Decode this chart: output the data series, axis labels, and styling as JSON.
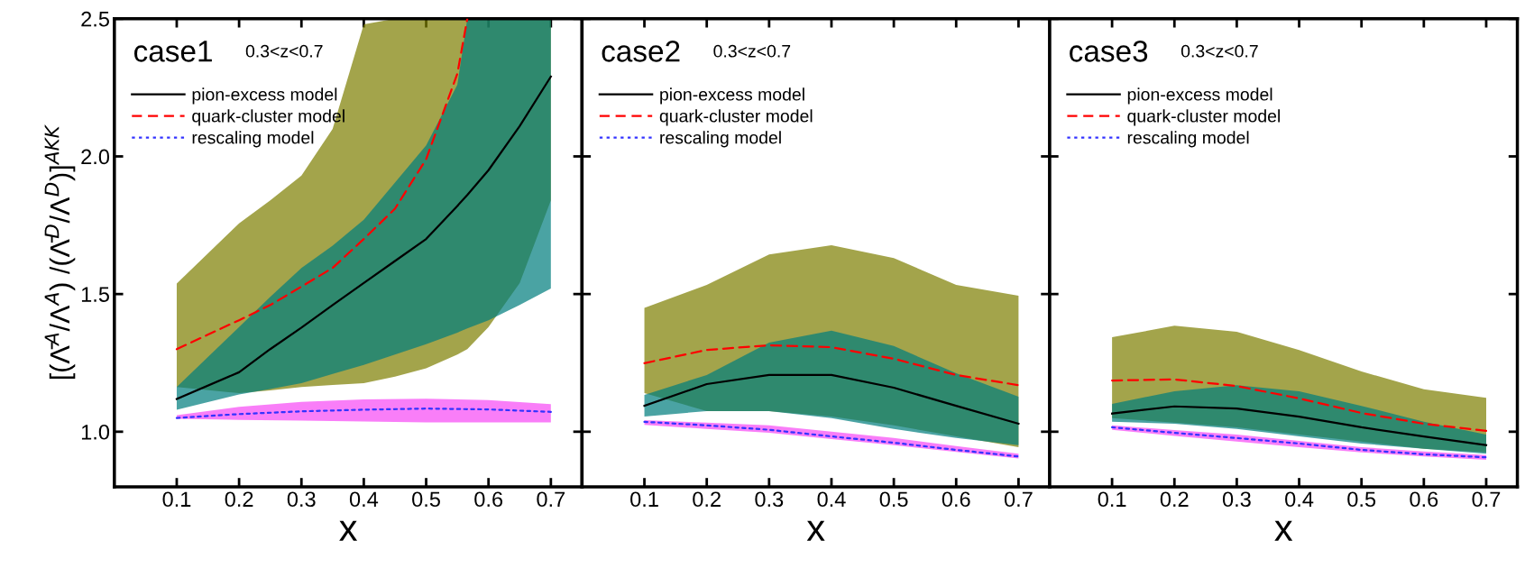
{
  "chart_data": [
    {
      "type": "line",
      "title": "case1",
      "subtitle": "0.3<z<0.7",
      "xlabel": "x",
      "ylabel": "[(Λ̄$^{A}$/Λ$^{A}$) /(Λ̄$^{D}$/Λ$^{D}$)]$^{AKK}$",
      "xlim": [
        0,
        0.75
      ],
      "ylim": [
        0.8,
        2.5
      ],
      "xticks": [
        0.1,
        0.2,
        0.3,
        0.4,
        0.5,
        0.6,
        0.7
      ],
      "yticks": [
        {
          "value": 1,
          "label": "1.0"
        },
        1.5,
        {
          "value": 2,
          "label": "2.0"
        },
        2.5
      ],
      "legend": "top left",
      "grid": false,
      "series": [
        {
          "name": "pion-excess model",
          "color": "#000000",
          "line_style": "solid",
          "x": [
            0.1,
            0.2,
            0.25,
            0.3,
            0.35,
            0.4,
            0.45,
            0.5,
            0.55,
            0.566,
            0.6,
            0.65,
            0.7
          ],
          "values": [
            1.119,
            1.216,
            1.3,
            1.378,
            1.46,
            1.54,
            1.62,
            1.7,
            1.82,
            1.86,
            1.95,
            2.11,
            2.29
          ],
          "upper": [
            1.162,
            1.38,
            1.49,
            1.595,
            1.676,
            1.77,
            1.905,
            2.04,
            2.26,
            2.5,
            2.5,
            2.5,
            2.5
          ],
          "lower": [
            1.08,
            1.135,
            1.155,
            1.176,
            1.21,
            1.243,
            1.28,
            1.318,
            1.36,
            1.375,
            1.405,
            1.46,
            1.52
          ]
        },
        {
          "name": "quark-cluster model",
          "color": "#ff0000",
          "line_style": "dashed",
          "x": [
            0.1,
            0.2,
            0.25,
            0.3,
            0.35,
            0.4,
            0.45,
            0.5,
            0.55,
            0.566,
            0.6,
            0.65,
            0.7
          ],
          "values": [
            1.3,
            1.405,
            1.46,
            1.527,
            1.595,
            1.7,
            1.81,
            1.99,
            2.3,
            2.5,
            null,
            null,
            null
          ],
          "upper": [
            1.538,
            1.757,
            1.84,
            1.93,
            2.1,
            2.48,
            2.5,
            2.5,
            2.5,
            2.5,
            2.5,
            2.5,
            2.5
          ],
          "lower": [
            1.162,
            1.14,
            1.15,
            1.162,
            1.17,
            1.176,
            1.2,
            1.23,
            1.28,
            1.3,
            1.38,
            1.54,
            1.84
          ]
        },
        {
          "name": "rescaling model",
          "color": "#3333ff",
          "line_style": "dotted",
          "x": [
            0.1,
            0.2,
            0.3,
            0.4,
            0.5,
            0.6,
            0.7
          ],
          "values": [
            1.05,
            1.064,
            1.074,
            1.08,
            1.084,
            1.081,
            1.072
          ],
          "upper": [
            1.06,
            1.09,
            1.108,
            1.117,
            1.12,
            1.115,
            1.1
          ],
          "lower": [
            1.047,
            1.043,
            1.04,
            1.037,
            1.034,
            1.034,
            1.034
          ]
        }
      ]
    },
    {
      "type": "line",
      "title": "case2",
      "subtitle": "0.3<z<0.7",
      "xlabel": "x",
      "xlim": [
        0,
        0.75
      ],
      "ylim": [
        0.8,
        2.5
      ],
      "xticks": [
        0.1,
        0.2,
        0.3,
        0.4,
        0.5,
        0.6,
        0.7
      ],
      "yticks": [
        1,
        1.5,
        2,
        2.5
      ],
      "tick_labels": "x",
      "legend": "top left",
      "grid": false,
      "series": [
        {
          "name": "pion-excess model",
          "color": "#000000",
          "line_style": "solid",
          "x": [
            0.1,
            0.2,
            0.3,
            0.4,
            0.5,
            0.6,
            0.7
          ],
          "values": [
            1.094,
            1.173,
            1.206,
            1.206,
            1.16,
            1.094,
            1.029
          ],
          "upper": [
            1.134,
            1.206,
            1.324,
            1.367,
            1.311,
            1.212,
            1.127
          ],
          "lower": [
            1.055,
            1.075,
            1.075,
            1.049,
            1.01,
            0.977,
            0.951
          ]
        },
        {
          "name": "quark-cluster model",
          "color": "#ff0000",
          "line_style": "dashed",
          "x": [
            0.1,
            0.2,
            0.3,
            0.4,
            0.5,
            0.6,
            0.7
          ],
          "values": [
            1.249,
            1.297,
            1.314,
            1.307,
            1.265,
            1.206,
            1.169
          ],
          "upper": [
            1.45,
            1.533,
            1.644,
            1.677,
            1.631,
            1.533,
            1.494
          ],
          "lower": [
            1.14,
            1.075,
            1.075,
            1.055,
            1.023,
            0.983,
            0.944
          ]
        },
        {
          "name": "rescaling model",
          "color": "#3333ff",
          "line_style": "dotted",
          "x": [
            0.1,
            0.2,
            0.3,
            0.4,
            0.5,
            0.6,
            0.7
          ],
          "values": [
            1.036,
            1.023,
            1.007,
            0.983,
            0.96,
            0.934,
            0.91
          ],
          "upper": [
            1.042,
            1.033,
            1.023,
            1.0,
            0.977,
            0.948,
            0.92
          ],
          "lower": [
            1.025,
            1.01,
            0.996,
            0.973,
            0.951,
            0.927,
            0.903
          ]
        }
      ]
    },
    {
      "type": "line",
      "title": "case3",
      "subtitle": "0.3<z<0.7",
      "xlabel": "x",
      "xlim": [
        0,
        0.75
      ],
      "ylim": [
        0.8,
        2.5
      ],
      "xticks": [
        0.1,
        0.2,
        0.3,
        0.4,
        0.5,
        0.6,
        0.7
      ],
      "yticks": [
        1,
        1.5,
        2,
        2.5
      ],
      "tick_labels": "x",
      "legend": "top left",
      "grid": false,
      "series": [
        {
          "name": "pion-excess model",
          "color": "#000000",
          "line_style": "solid",
          "x": [
            0.1,
            0.2,
            0.3,
            0.4,
            0.5,
            0.6,
            0.7
          ],
          "values": [
            1.066,
            1.092,
            1.084,
            1.055,
            1.016,
            0.983,
            0.951
          ],
          "upper": [
            1.101,
            1.147,
            1.169,
            1.147,
            1.094,
            1.036,
            0.99
          ],
          "lower": [
            1.036,
            1.029,
            1.01,
            0.983,
            0.957,
            0.938,
            0.92
          ]
        },
        {
          "name": "quark-cluster model",
          "color": "#ff0000",
          "line_style": "dashed",
          "x": [
            0.1,
            0.2,
            0.3,
            0.4,
            0.5,
            0.6,
            0.7
          ],
          "values": [
            1.186,
            1.19,
            1.166,
            1.121,
            1.068,
            1.029,
            1.003
          ],
          "upper": [
            1.343,
            1.385,
            1.363,
            1.297,
            1.219,
            1.154,
            1.123
          ],
          "lower": [
            1.049,
            1.033,
            1.016,
            0.99,
            0.964,
            0.938,
            0.925
          ]
        },
        {
          "name": "rescaling model",
          "color": "#3333ff",
          "line_style": "dotted",
          "x": [
            0.1,
            0.2,
            0.3,
            0.4,
            0.5,
            0.6,
            0.7
          ],
          "values": [
            1.016,
            0.996,
            0.977,
            0.957,
            0.934,
            0.918,
            0.907
          ],
          "upper": [
            1.023,
            1.006,
            0.99,
            0.967,
            0.944,
            0.928,
            0.915
          ],
          "lower": [
            1.007,
            0.985,
            0.964,
            0.944,
            0.925,
            0.91,
            0.898
          ]
        }
      ]
    }
  ]
}
